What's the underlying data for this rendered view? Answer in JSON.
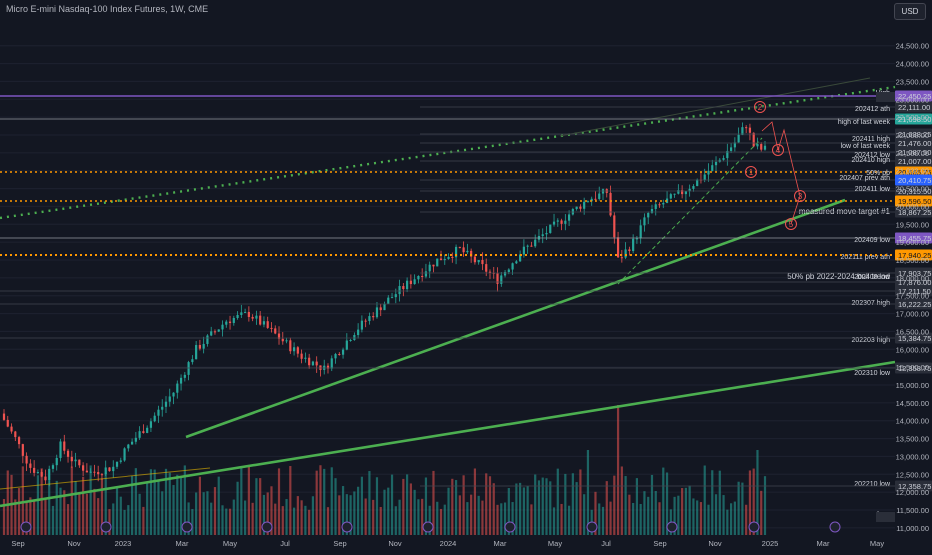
{
  "header": {
    "title": "Micro E-mini Nasdaq-100 Index Futures, 1W, CME",
    "currency": "USD"
  },
  "time_axis": [
    "Sep",
    "Nov",
    "2023",
    "Mar",
    "May",
    "Jul",
    "Sep",
    "Nov",
    "2024",
    "Mar",
    "May",
    "Jul",
    "Sep",
    "Nov",
    "2025",
    "Mar",
    "May"
  ],
  "price_axis": [
    "24,500.00",
    "24,000.00",
    "23,500.00",
    "23,000.00",
    "22,500.00",
    "22,000.00",
    "21,500.00",
    "21,000.00",
    "20,500.00",
    "20,000.00",
    "19,500.00",
    "19,000.00",
    "18,500.00",
    "18,000.00",
    "17,500.00",
    "17,000.00",
    "16,500.00",
    "16,000.00",
    "15,500.00",
    "15,000.00",
    "14,500.00",
    "14,000.00",
    "13,500.00",
    "13,000.00",
    "12,500.00",
    "12,000.00",
    "11,500.00",
    "11,000.00"
  ],
  "levels": [
    {
      "label": "High",
      "price": "22,450.25"
    },
    {
      "label": "202412 ath",
      "price": "22,111.00"
    },
    {
      "label": "high of last week",
      "price": "21,698.50"
    },
    {
      "label": "202411 high",
      "price": "21,638.25"
    },
    {
      "label": "low of last week",
      "price": "21,476.00"
    },
    {
      "label": "202412 low",
      "price": "21,087.50"
    },
    {
      "label": "202410 high",
      "price": "21,007.00"
    },
    {
      "label": "50% pb",
      "price": "20,665.75"
    },
    {
      "label": "202407 prev ath",
      "price": "20,410.75"
    },
    {
      "label": "202411 low",
      "price": "20,315.50"
    },
    {
      "label": "measured move target #1",
      "price": "19,596.50"
    },
    {
      "label": "202409 low",
      "price": "18,867.25"
    },
    {
      "label": "202111 prev ath",
      "price": "18,455.75"
    },
    {
      "label": "50% pb 2022-2024 bull trend",
      "price": "17,940.25"
    },
    {
      "label": "202408 low",
      "price": "17,903.75"
    },
    {
      "label": "",
      "price": "17,876.00"
    },
    {
      "label": "202307 high",
      "price": "17,211.50"
    },
    {
      "label": "202203 high",
      "price": "16,222.25"
    },
    {
      "label": "202310 low",
      "price": "15,384.75"
    },
    {
      "label": "202210 low",
      "price": "12,358.75"
    },
    {
      "label": "Low",
      "price": "12,358.75"
    }
  ],
  "wave_labels": [
    "2",
    "1",
    "4",
    "3",
    "5"
  ],
  "colors": {
    "up": "#26a69a",
    "down": "#ef5350",
    "trend": "#4caf50",
    "dotted": "#4caf50",
    "orange": "#ff9800",
    "purple": "#7e57c2",
    "blue": "#2962ff",
    "bg": "#131722"
  },
  "chart_data": {
    "type": "candlestick",
    "title": "Micro E-mini Nasdaq-100 Index Futures, 1W, CME",
    "ylim": [
      10800,
      24900
    ],
    "x_range": [
      "2022-08",
      "2025-05"
    ]
  }
}
